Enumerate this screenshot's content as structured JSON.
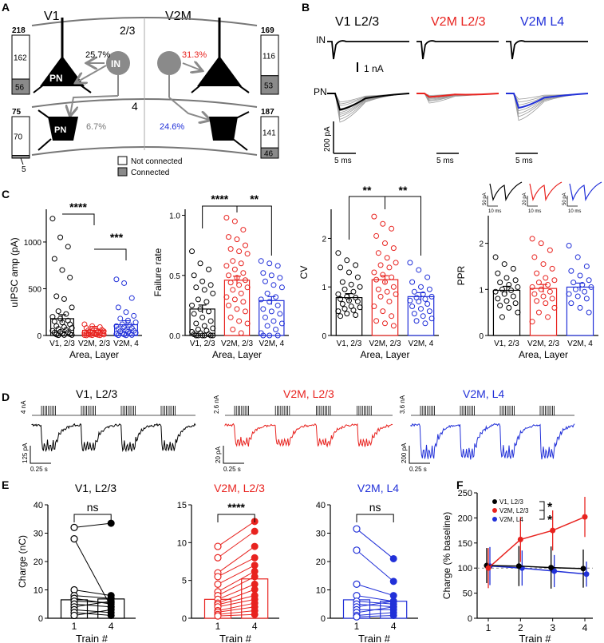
{
  "panel_labels": {
    "A": "A",
    "B": "B",
    "C": "C",
    "D": "D",
    "E": "E",
    "F": "F"
  },
  "colors": {
    "v1": "#000000",
    "v2m_l23": "#e8231f",
    "v2m_l4": "#2130d8",
    "grey": "#8a8a8a"
  },
  "panelA": {
    "v1_label": "V1",
    "v2m_label": "V2M",
    "layer23_label": "2/3",
    "layer4_label": "4",
    "pn_label": "PN",
    "in_label": "IN",
    "pn_l4_label": "PN",
    "pct_v1_l23": "25.7%",
    "pct_v2m_l23": "31.3%",
    "pct_v1_l4": "6.7%",
    "pct_v2m_l4": "24.6%",
    "box_v1_l23": {
      "total": "218",
      "not_connected": "162",
      "connected": "56",
      "not_connected_frac": 0.743
    },
    "box_v2m_l23": {
      "total": "169",
      "not_connected": "116",
      "connected": "53",
      "not_connected_frac": 0.686
    },
    "box_v1_l4": {
      "total": "75",
      "not_connected": "70",
      "connected": "5",
      "not_connected_frac": 0.933
    },
    "box_v2m_l4": {
      "total": "187",
      "not_connected": "141",
      "connected": "46",
      "not_connected_frac": 0.754
    },
    "legend_not_connected": "Not connected",
    "legend_connected": "Connected"
  },
  "panelB": {
    "col_titles": [
      "V1 L2/3",
      "V2M L2/3",
      "V2M L4"
    ],
    "in_row": "IN",
    "pn_row": "PN",
    "in_scale": "1 nA",
    "pa_scale": "200 pA",
    "time_scales": [
      "5 ms",
      "5 ms",
      "5 ms"
    ]
  },
  "chart_data": [
    {
      "type": "bar",
      "id": "C1",
      "categories": [
        "V1, 2/3",
        "V2M, 2/3",
        "V2M, 4"
      ],
      "values": [
        180,
        55,
        115
      ],
      "ylabel": "uIPSC amp (pA)",
      "xlabel": "Area, Layer",
      "ylim": [
        0,
        1350
      ],
      "yticks": [
        "0",
        "500",
        "1000"
      ],
      "sig": [
        "****",
        "***"
      ],
      "points": [
        [
          1250,
          1050,
          950,
          820,
          700,
          620,
          420,
          390,
          300,
          260,
          230,
          200,
          180,
          160,
          150,
          140,
          120,
          100,
          90,
          80,
          70,
          60,
          50,
          40,
          35,
          30,
          20,
          15,
          10,
          5,
          5,
          3
        ],
        [
          120,
          100,
          90,
          80,
          70,
          60,
          55,
          50,
          45,
          40,
          35,
          30,
          28,
          25,
          22,
          20,
          18,
          15,
          12,
          10,
          8,
          6,
          4,
          3,
          2,
          1
        ],
        [
          600,
          560,
          400,
          300,
          250,
          210,
          180,
          160,
          140,
          120,
          110,
          100,
          90,
          80,
          70,
          60,
          50,
          45,
          40,
          30,
          25,
          20,
          15,
          10,
          5,
          3,
          2
        ]
      ]
    },
    {
      "type": "bar",
      "id": "C2",
      "categories": [
        "V1, 2/3",
        "V2M, 2/3",
        "V2M, 4"
      ],
      "values": [
        0.22,
        0.46,
        0.29
      ],
      "ylabel": "Failure rate",
      "xlabel": "Area, Layer",
      "ylim": [
        0,
        1.05
      ],
      "yticks": [
        "0.0",
        "0.5",
        "1.0"
      ],
      "sig": [
        "****",
        "**"
      ],
      "points": [
        [
          0.7,
          0.6,
          0.55,
          0.5,
          0.45,
          0.42,
          0.4,
          0.38,
          0.35,
          0.3,
          0.28,
          0.25,
          0.22,
          0.2,
          0.18,
          0.15,
          0.12,
          0.1,
          0.08,
          0.06,
          0.05,
          0.04,
          0.03,
          0.02,
          0.01,
          0.01,
          0.0,
          0.0,
          0.0,
          0.0,
          0.0,
          0.0
        ],
        [
          0.98,
          0.95,
          0.88,
          0.82,
          0.8,
          0.75,
          0.72,
          0.7,
          0.68,
          0.62,
          0.6,
          0.58,
          0.55,
          0.52,
          0.5,
          0.48,
          0.46,
          0.44,
          0.42,
          0.4,
          0.38,
          0.35,
          0.32,
          0.3,
          0.28,
          0.25,
          0.22,
          0.2,
          0.15,
          0.12,
          0.1,
          0.05,
          0.02
        ],
        [
          0.62,
          0.6,
          0.58,
          0.52,
          0.5,
          0.48,
          0.45,
          0.42,
          0.4,
          0.35,
          0.32,
          0.3,
          0.28,
          0.25,
          0.22,
          0.2,
          0.18,
          0.15,
          0.12,
          0.1,
          0.08,
          0.05,
          0.02,
          0.0,
          0.0,
          0.0
        ]
      ]
    },
    {
      "type": "bar",
      "id": "C3",
      "categories": [
        "V1, 2/3",
        "V2M, 2/3",
        "V2M, 4"
      ],
      "values": [
        0.78,
        1.15,
        0.8
      ],
      "ylabel": "CV",
      "xlabel": "Area, Layer",
      "ylim": [
        0,
        2.6
      ],
      "yticks": [
        "0",
        "1",
        "2"
      ],
      "sig": [
        "**",
        "**"
      ],
      "points": [
        [
          1.7,
          1.55,
          1.45,
          1.4,
          1.3,
          1.2,
          1.1,
          1.05,
          1.0,
          0.95,
          0.9,
          0.85,
          0.8,
          0.78,
          0.75,
          0.72,
          0.7,
          0.65,
          0.6,
          0.58,
          0.55,
          0.52,
          0.5,
          0.45,
          0.42,
          0.4
        ],
        [
          2.45,
          2.3,
          2.2,
          2.05,
          1.9,
          1.8,
          1.7,
          1.6,
          1.5,
          1.45,
          1.4,
          1.3,
          1.25,
          1.2,
          1.15,
          1.1,
          1.0,
          0.95,
          0.9,
          0.85,
          0.8,
          0.7,
          0.6,
          0.5,
          0.4,
          0.3,
          0.25,
          0.2
        ],
        [
          1.5,
          1.35,
          1.2,
          1.1,
          1.0,
          0.95,
          0.9,
          0.85,
          0.8,
          0.78,
          0.75,
          0.72,
          0.7,
          0.65,
          0.6,
          0.55,
          0.5,
          0.45,
          0.4,
          0.35,
          0.3,
          0.25
        ]
      ]
    },
    {
      "type": "bar",
      "id": "C4",
      "categories": [
        "V1, 2/3",
        "V2M, 2/3",
        "V2M, 4"
      ],
      "values": [
        0.98,
        1.02,
        1.05
      ],
      "ylabel": "PPR",
      "xlabel": "Area, Layer",
      "ylim": [
        0,
        2.6
      ],
      "yticks": [
        "0",
        "1",
        "2"
      ],
      "inset_scales": [
        "50 pA",
        "10 ms",
        "20 pA",
        "10 ms",
        "50 pA",
        "10 ms"
      ],
      "points": [
        [
          1.7,
          1.55,
          1.45,
          1.35,
          1.25,
          1.2,
          1.15,
          1.1,
          1.05,
          1.0,
          0.98,
          0.95,
          0.9,
          0.85,
          0.8,
          0.75,
          0.7,
          0.65,
          0.6,
          0.5,
          0.4
        ],
        [
          2.1,
          2.0,
          1.85,
          1.7,
          1.55,
          1.45,
          1.35,
          1.25,
          1.2,
          1.15,
          1.1,
          1.05,
          1.0,
          0.95,
          0.9,
          0.85,
          0.8,
          0.75,
          0.7,
          0.6,
          0.5,
          0.4,
          0.3
        ],
        [
          1.95,
          1.7,
          1.5,
          1.4,
          1.3,
          1.2,
          1.15,
          1.1,
          1.05,
          1.0,
          0.95,
          0.9,
          0.85,
          0.8,
          0.7,
          0.6,
          0.5
        ]
      ]
    },
    {
      "type": "bar",
      "id": "E1",
      "title": "V1, L2/3",
      "categories": [
        "1",
        "4"
      ],
      "values": [
        6.5,
        6.8
      ],
      "ylabel": "Charge (nC)",
      "xlabel": "Train #",
      "ylim": [
        0,
        40
      ],
      "yticks": [
        "0",
        "10",
        "20",
        "30",
        "40"
      ],
      "sig": "ns",
      "pairs": [
        [
          32,
          33.5
        ],
        [
          28,
          4
        ],
        [
          10,
          8
        ],
        [
          8,
          7
        ],
        [
          7,
          5
        ],
        [
          6,
          5.5
        ],
        [
          5,
          4
        ],
        [
          4,
          6
        ],
        [
          3,
          2
        ],
        [
          2,
          1
        ],
        [
          1,
          3
        ]
      ]
    },
    {
      "type": "bar",
      "id": "E2",
      "title": "V2M, L2/3",
      "categories": [
        "1",
        "4"
      ],
      "values": [
        2.5,
        5.2
      ],
      "ylabel": "",
      "xlabel": "Train #",
      "ylim": [
        0,
        15
      ],
      "yticks": [
        "0",
        "5",
        "10",
        "15"
      ],
      "sig": "****",
      "pairs": [
        [
          9.5,
          12.8
        ],
        [
          8,
          11.5
        ],
        [
          6,
          9.5
        ],
        [
          5.5,
          8
        ],
        [
          4.5,
          7
        ],
        [
          3.5,
          6.2
        ],
        [
          3,
          5.5
        ],
        [
          2.5,
          4.5
        ],
        [
          2,
          3.8
        ],
        [
          1.8,
          3
        ],
        [
          1.5,
          2.5
        ],
        [
          1,
          2
        ],
        [
          0.8,
          1.5
        ],
        [
          0.5,
          1
        ],
        [
          0.3,
          0.5
        ]
      ]
    },
    {
      "type": "bar",
      "id": "E3",
      "title": "V2M, L4",
      "categories": [
        "1",
        "4"
      ],
      "values": [
        6.5,
        6.0
      ],
      "ylabel": "",
      "xlabel": "Train #",
      "ylim": [
        0,
        40
      ],
      "yticks": [
        "0",
        "10",
        "20",
        "30",
        "40"
      ],
      "sig": "ns",
      "pairs": [
        [
          31.5,
          21
        ],
        [
          24,
          13
        ],
        [
          12,
          8
        ],
        [
          8,
          6
        ],
        [
          6,
          5
        ],
        [
          5,
          4
        ],
        [
          4,
          6
        ],
        [
          3,
          3
        ],
        [
          2,
          4
        ],
        [
          1,
          2
        ],
        [
          0.5,
          1
        ]
      ]
    },
    {
      "type": "line",
      "id": "F",
      "x": [
        1,
        2,
        3,
        4
      ],
      "series": [
        {
          "name": "V1, L2/3",
          "values": [
            105,
            104,
            101,
            99
          ],
          "err": [
            35,
            40,
            42,
            38
          ]
        },
        {
          "name": "V2M, L2/3",
          "values": [
            100,
            157,
            175,
            202
          ],
          "err": [
            40,
            45,
            40,
            40
          ]
        },
        {
          "name": "V2M, L4",
          "values": [
            104,
            100,
            94,
            88
          ],
          "err": [
            38,
            35,
            32,
            25
          ]
        }
      ],
      "ylabel": "Charge (% baseline)",
      "xlabel": "Train #",
      "ylim": [
        0,
        250
      ],
      "yticks": [
        "0",
        "50",
        "100",
        "150",
        "200",
        "250"
      ],
      "xticks": [
        "1",
        "2",
        "3",
        "4"
      ],
      "sig": [
        "*",
        "*"
      ]
    }
  ],
  "panelD": {
    "titles": [
      "V1, L2/3",
      "V2M, L2/3",
      "V2M, L4"
    ],
    "stim_scales": [
      "4 nA",
      "2.6 nA",
      "3.6 nA"
    ],
    "amp_scales": [
      "125 pA",
      "20 pA",
      "200 pA"
    ],
    "time_scales": [
      "0.25 s",
      "0.25 s",
      "0.25 s"
    ]
  }
}
